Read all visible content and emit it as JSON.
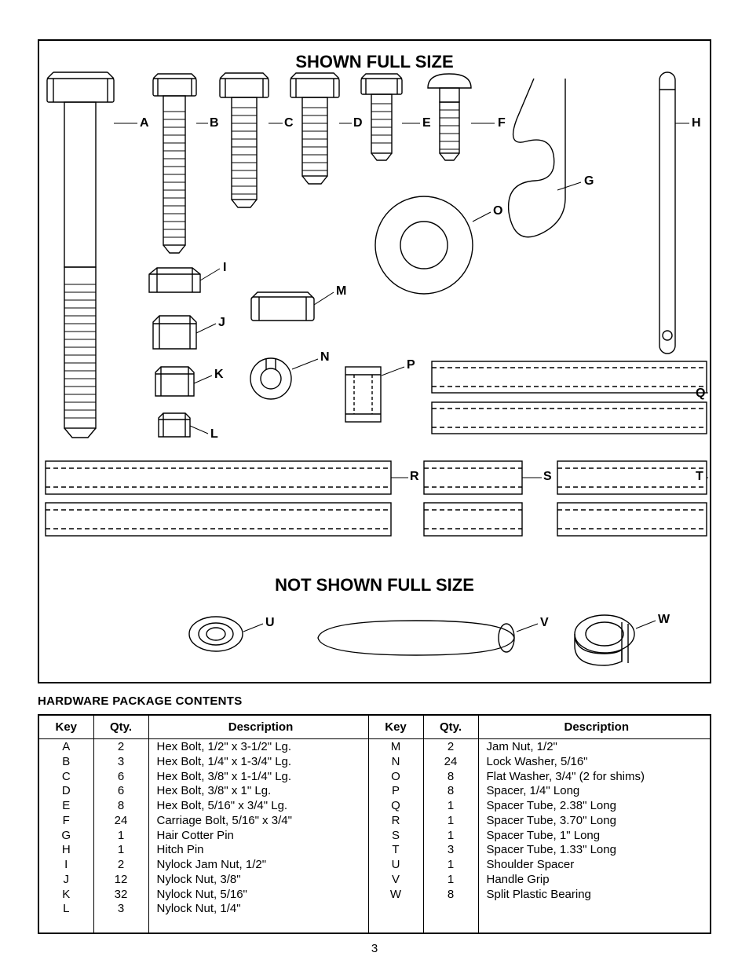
{
  "diagram": {
    "title_top": "SHOWN FULL SIZE",
    "title_bottom": "NOT SHOWN FULL SIZE",
    "labels": {
      "A": "A",
      "B": "B",
      "C": "C",
      "D": "D",
      "E": "E",
      "F": "F",
      "G": "G",
      "H": "H",
      "I": "I",
      "J": "J",
      "K": "K",
      "L": "L",
      "M": "M",
      "N": "N",
      "O": "O",
      "P": "P",
      "Q": "Q",
      "R": "R",
      "S": "S",
      "T": "T",
      "U": "U",
      "V": "V",
      "W": "W"
    }
  },
  "table": {
    "section_title": "HARDWARE PACKAGE CONTENTS",
    "headers": {
      "key": "Key",
      "qty": "Qty.",
      "desc": "Description"
    },
    "left": [
      {
        "key": "A",
        "qty": "2",
        "desc": "Hex Bolt, 1/2\" x 3-1/2\" Lg."
      },
      {
        "key": "B",
        "qty": "3",
        "desc": "Hex Bolt, 1/4\" x 1-3/4\" Lg."
      },
      {
        "key": "C",
        "qty": "6",
        "desc": "Hex Bolt, 3/8\" x 1-1/4\" Lg."
      },
      {
        "key": "D",
        "qty": "6",
        "desc": "Hex Bolt, 3/8\" x 1\" Lg."
      },
      {
        "key": "E",
        "qty": "8",
        "desc": "Hex Bolt, 5/16\" x 3/4\" Lg."
      },
      {
        "key": "F",
        "qty": "24",
        "desc": "Carriage Bolt, 5/16\" x 3/4\""
      },
      {
        "key": "G",
        "qty": "1",
        "desc": "Hair Cotter Pin"
      },
      {
        "key": "H",
        "qty": "1",
        "desc": "Hitch Pin"
      },
      {
        "key": "I",
        "qty": "2",
        "desc": "Nylock Jam Nut, 1/2\""
      },
      {
        "key": "J",
        "qty": "12",
        "desc": "Nylock Nut, 3/8\""
      },
      {
        "key": "K",
        "qty": "32",
        "desc": "Nylock Nut, 5/16\""
      },
      {
        "key": "L",
        "qty": "3",
        "desc": "Nylock Nut, 1/4\""
      }
    ],
    "right": [
      {
        "key": "M",
        "qty": "2",
        "desc": "Jam Nut, 1/2\""
      },
      {
        "key": "N",
        "qty": "24",
        "desc": "Lock Washer, 5/16\""
      },
      {
        "key": "O",
        "qty": "8",
        "desc": "Flat Washer, 3/4\" (2 for shims)"
      },
      {
        "key": "P",
        "qty": "8",
        "desc": "Spacer, 1/4\" Long"
      },
      {
        "key": "Q",
        "qty": "1",
        "desc": "Spacer Tube, 2.38\" Long"
      },
      {
        "key": "R",
        "qty": "1",
        "desc": "Spacer Tube, 3.70\" Long"
      },
      {
        "key": "S",
        "qty": "1",
        "desc": "Spacer Tube, 1\" Long"
      },
      {
        "key": "T",
        "qty": "3",
        "desc": "Spacer Tube, 1.33\" Long"
      },
      {
        "key": "U",
        "qty": "1",
        "desc": "Shoulder Spacer"
      },
      {
        "key": "V",
        "qty": "1",
        "desc": "Handle Grip"
      },
      {
        "key": "W",
        "qty": "8",
        "desc": "Split Plastic Bearing"
      }
    ]
  },
  "page_number": "3",
  "style": {
    "line_color": "#000000",
    "dash": "6,4",
    "label_fontsize": 16,
    "title_fontsize": 22
  }
}
